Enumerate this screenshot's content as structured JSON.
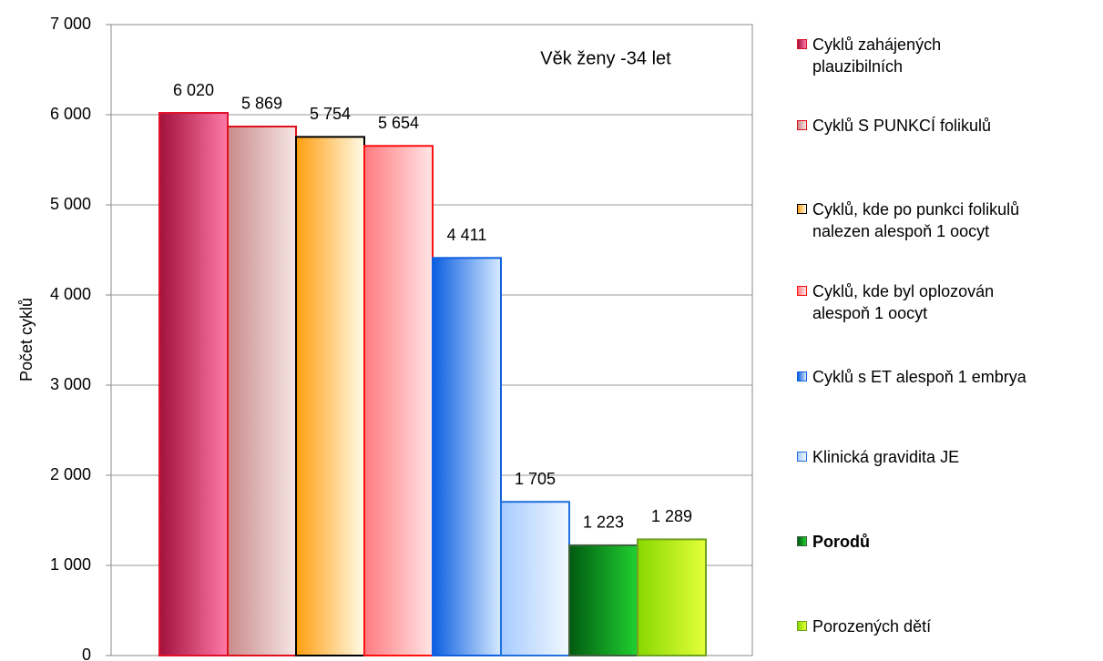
{
  "chart_data": {
    "type": "bar",
    "title": "Věk ženy -34 let",
    "y_label": "Počet cyklů",
    "ylim": [
      0,
      7000
    ],
    "yticks": [
      {
        "value": 0,
        "label": "0"
      },
      {
        "value": 1000,
        "label": "1 000"
      },
      {
        "value": 2000,
        "label": "2 000"
      },
      {
        "value": 3000,
        "label": "3 000"
      },
      {
        "value": 4000,
        "label": "4 000"
      },
      {
        "value": 5000,
        "label": "5 000"
      },
      {
        "value": 6000,
        "label": "6 000"
      },
      {
        "value": 7000,
        "label": "7 000"
      }
    ],
    "grid": true,
    "series": [
      {
        "name": "Cyklů zahájených plauzibilních",
        "color": "#a3103c",
        "gradient_end": "#ff7aa8",
        "edge": "#e0102a",
        "values": [
          6020
        ],
        "value_labels": [
          "6 020"
        ]
      },
      {
        "name": "Cyklů S PUNKCÍ folikulů",
        "color": "#c98a8a",
        "gradient_end": "#f7e6e6",
        "edge": "#e0101a",
        "values": [
          5869
        ],
        "value_labels": [
          "5 869"
        ]
      },
      {
        "name": "Cyklů, kde po punkci folikulů nalezen alespoň 1 oocyt",
        "color": "#ff9e10",
        "gradient_end": "#fffbe8",
        "edge": "#000000",
        "values": [
          5754
        ],
        "value_labels": [
          "5 754"
        ]
      },
      {
        "name": "Cyklů, kde byl oplozován alespoň 1 oocyt",
        "color": "#ff7a80",
        "gradient_end": "#ffe6e6",
        "edge": "#ff1010",
        "values": [
          5654
        ],
        "value_labels": [
          "5 654"
        ]
      },
      {
        "name": "Cyklů s ET alespoň 1 embrya",
        "color": "#0a5ee0",
        "gradient_end": "#d6eaff",
        "edge": "#1060e0",
        "values": [
          4411
        ],
        "value_labels": [
          "4 411"
        ]
      },
      {
        "name": "Klinická gravidita JE",
        "color": "#a6cbff",
        "gradient_end": "#f2f8ff",
        "edge": "#2070e0",
        "values": [
          1705
        ],
        "value_labels": [
          "1 705"
        ]
      },
      {
        "name": "Porodů",
        "color": "#005a10",
        "gradient_end": "#20d030",
        "edge": "#406040",
        "bold": true,
        "values": [
          1223
        ],
        "value_labels": [
          "1 223"
        ]
      },
      {
        "name": "Porozených dětí",
        "color": "#88d800",
        "gradient_end": "#e4ff3a",
        "edge": "#70a020",
        "values": [
          1289
        ],
        "value_labels": [
          "1 289"
        ]
      }
    ]
  }
}
